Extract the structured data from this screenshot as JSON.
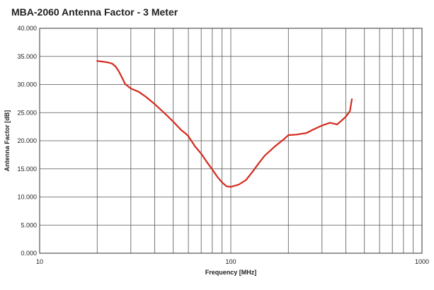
{
  "chart_data": {
    "type": "line",
    "title": "MBA-2060 Antenna Factor - 3 Meter",
    "xlabel": "Frequency [MHz]",
    "ylabel": "Antenna Factor [dB]",
    "x_scale": "log",
    "xlim": [
      10,
      1000
    ],
    "ylim": [
      0,
      40
    ],
    "x_tick_labels": [
      "10",
      "100",
      "1000"
    ],
    "y_tick_labels": [
      "0.000",
      "5.000",
      "10.000",
      "15.000",
      "20.000",
      "25.000",
      "30.000",
      "35.000",
      "40.000"
    ],
    "grid": true,
    "legend": "none",
    "line_color": "#d42a1e",
    "series": [
      {
        "x": [
          20,
          22,
          23,
          24,
          25,
          26,
          27,
          28,
          30,
          33,
          36,
          40,
          45,
          50,
          55,
          58,
          60,
          65,
          70,
          75,
          80,
          85,
          90,
          95,
          100,
          110,
          120,
          130,
          140,
          150,
          170,
          190,
          200,
          220,
          250,
          270,
          300,
          330,
          350,
          360,
          380,
          400,
          410,
          420,
          430
        ],
        "y": [
          34.2,
          34.0,
          33.9,
          33.7,
          33.2,
          32.3,
          31.2,
          30.1,
          29.3,
          28.7,
          27.8,
          26.5,
          24.9,
          23.4,
          21.9,
          21.3,
          20.8,
          19.0,
          17.7,
          16.2,
          14.9,
          13.6,
          12.6,
          11.9,
          11.8,
          12.2,
          13.0,
          14.5,
          16.0,
          17.3,
          19.0,
          20.3,
          21.0,
          21.1,
          21.4,
          22.0,
          22.7,
          23.2,
          23.0,
          22.9,
          23.6,
          24.3,
          24.8,
          25.3,
          27.4
        ]
      }
    ]
  }
}
